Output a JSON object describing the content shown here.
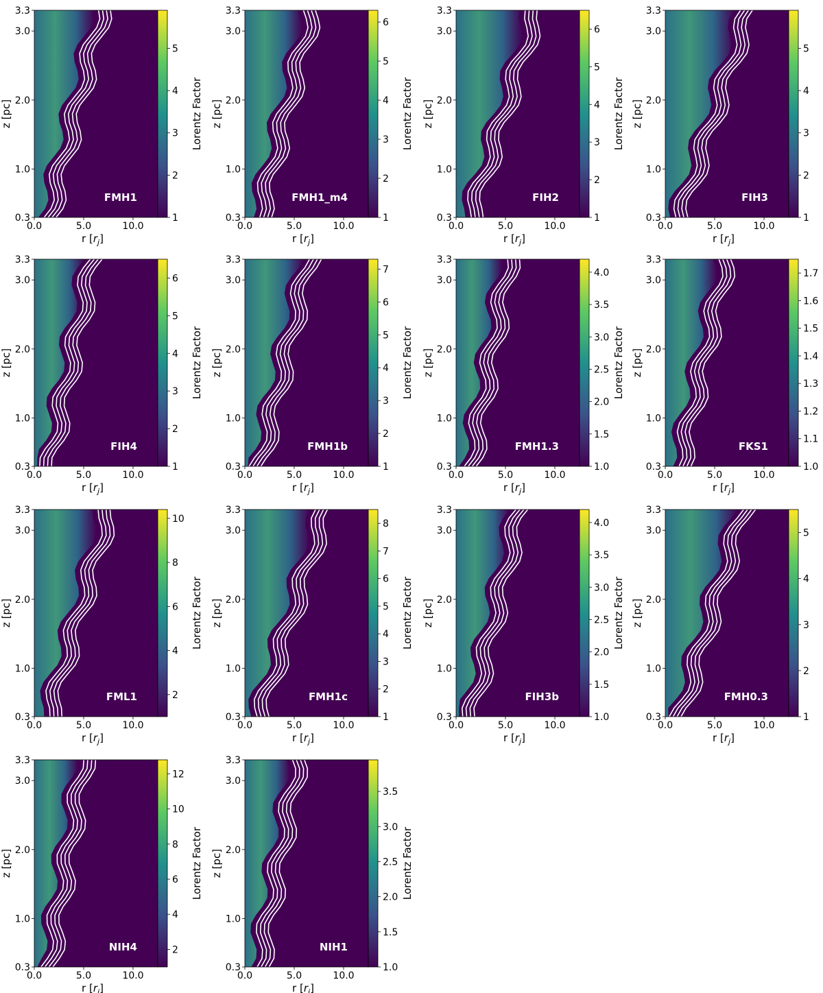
{
  "figure": {
    "xlabel_main": "r [",
    "xlabel_sym": "r",
    "xlabel_sub": "j",
    "xlabel_end": "]",
    "ylabel": "z [pc]",
    "cbar_label": "Lorentz Factor",
    "x_ticks": [
      "0.0",
      "5.0",
      "10.0"
    ],
    "y_ticks": [
      "0.3",
      "1.0",
      "2.0",
      "3.0",
      "3.3"
    ],
    "colormap": [
      "#440154",
      "#3b528b",
      "#21918c",
      "#5ec962",
      "#fde725"
    ]
  },
  "chart_data": [
    {
      "type": "heatmap",
      "name": "FMH1",
      "cbar_ticks": [
        "1",
        "2",
        "3",
        "4",
        "5"
      ],
      "cbar_range": [
        1,
        5.9
      ],
      "xlim": [
        0,
        12.5
      ],
      "ylim": [
        0.3,
        3.3
      ],
      "contour_radius_at_top": 4.8
    },
    {
      "type": "heatmap",
      "name": "FMH1_m4",
      "cbar_ticks": [
        "1",
        "2",
        "3",
        "4",
        "5",
        "6"
      ],
      "cbar_range": [
        1,
        6.3
      ],
      "xlim": [
        0,
        12.5
      ],
      "ylim": [
        0.3,
        3.3
      ],
      "contour_radius_at_top": 4.8
    },
    {
      "type": "heatmap",
      "name": "FIH2",
      "cbar_ticks": [
        "1",
        "2",
        "3",
        "4",
        "5",
        "6"
      ],
      "cbar_range": [
        1,
        6.5
      ],
      "xlim": [
        0,
        12.5
      ],
      "ylim": [
        0.3,
        3.3
      ],
      "contour_radius_at_top": 6.0
    },
    {
      "type": "heatmap",
      "name": "FIH3",
      "cbar_ticks": [
        "1",
        "2",
        "3",
        "4",
        "5"
      ],
      "cbar_range": [
        1,
        5.9
      ],
      "xlim": [
        0,
        12.5
      ],
      "ylim": [
        0.3,
        3.3
      ],
      "contour_radius_at_top": 6.3
    },
    {
      "type": "heatmap",
      "name": "FIH4",
      "cbar_ticks": [
        "1",
        "2",
        "3",
        "4",
        "5",
        "6"
      ],
      "cbar_range": [
        1,
        6.5
      ],
      "xlim": [
        0,
        12.5
      ],
      "ylim": [
        0.3,
        3.3
      ],
      "contour_radius_at_top": 4.0
    },
    {
      "type": "heatmap",
      "name": "FMH1b",
      "cbar_ticks": [
        "1",
        "2",
        "3",
        "4",
        "5",
        "6",
        "7"
      ],
      "cbar_range": [
        1,
        7.3
      ],
      "xlim": [
        0,
        12.5
      ],
      "ylim": [
        0.3,
        3.3
      ],
      "contour_radius_at_top": 4.5
    },
    {
      "type": "heatmap",
      "name": "FMH1.3",
      "cbar_ticks": [
        "1.0",
        "1.5",
        "2.0",
        "2.5",
        "3.0",
        "3.5",
        "4.0"
      ],
      "cbar_range": [
        1,
        4.2
      ],
      "xlim": [
        0,
        12.5
      ],
      "ylim": [
        0.3,
        3.3
      ],
      "contour_radius_at_top": 3.5
    },
    {
      "type": "heatmap",
      "name": "FKS1",
      "cbar_ticks": [
        "1.0",
        "1.1",
        "1.2",
        "1.3",
        "1.4",
        "1.5",
        "1.6",
        "1.7"
      ],
      "cbar_range": [
        1,
        1.75
      ],
      "xlim": [
        0,
        12.5
      ],
      "ylim": [
        0.3,
        3.3
      ],
      "contour_radius_at_top": 4.2
    },
    {
      "type": "heatmap",
      "name": "FML1",
      "cbar_ticks": [
        "2",
        "4",
        "6",
        "8",
        "10"
      ],
      "cbar_range": [
        1,
        10.4
      ],
      "xlim": [
        0,
        12.5
      ],
      "ylim": [
        0.3,
        3.3
      ],
      "contour_radius_at_top": 5.5
    },
    {
      "type": "heatmap",
      "name": "FMH1c",
      "cbar_ticks": [
        "1",
        "2",
        "3",
        "4",
        "5",
        "6",
        "7",
        "8"
      ],
      "cbar_range": [
        1,
        8.5
      ],
      "xlim": [
        0,
        12.5
      ],
      "ylim": [
        0.3,
        3.3
      ],
      "contour_radius_at_top": 6.0
    },
    {
      "type": "heatmap",
      "name": "FIH3b",
      "cbar_ticks": [
        "1.0",
        "1.5",
        "2.0",
        "2.5",
        "3.0",
        "3.5",
        "4.0"
      ],
      "cbar_range": [
        1,
        4.2
      ],
      "xlim": [
        0,
        12.5
      ],
      "ylim": [
        0.3,
        3.3
      ],
      "contour_radius_at_top": 4.5
    },
    {
      "type": "heatmap",
      "name": "FMH0.3",
      "cbar_ticks": [
        "1",
        "2",
        "3",
        "4",
        "5"
      ],
      "cbar_range": [
        1,
        5.5
      ],
      "xlim": [
        0,
        12.5
      ],
      "ylim": [
        0.3,
        3.3
      ],
      "contour_radius_at_top": 5.8
    },
    {
      "type": "heatmap",
      "name": "NIH4",
      "cbar_ticks": [
        "2",
        "4",
        "6",
        "8",
        "10",
        "12"
      ],
      "cbar_range": [
        1,
        12.8
      ],
      "xlim": [
        0,
        12.5
      ],
      "ylim": [
        0.3,
        3.3
      ],
      "contour_radius_at_top": 3.2
    },
    {
      "type": "heatmap",
      "name": "NIH1",
      "cbar_ticks": [
        "1.0",
        "1.5",
        "2.0",
        "2.5",
        "3.0",
        "3.5"
      ],
      "cbar_range": [
        1,
        3.95
      ],
      "xlim": [
        0,
        12.5
      ],
      "ylim": [
        0.3,
        3.3
      ],
      "contour_radius_at_top": 3.5
    }
  ]
}
